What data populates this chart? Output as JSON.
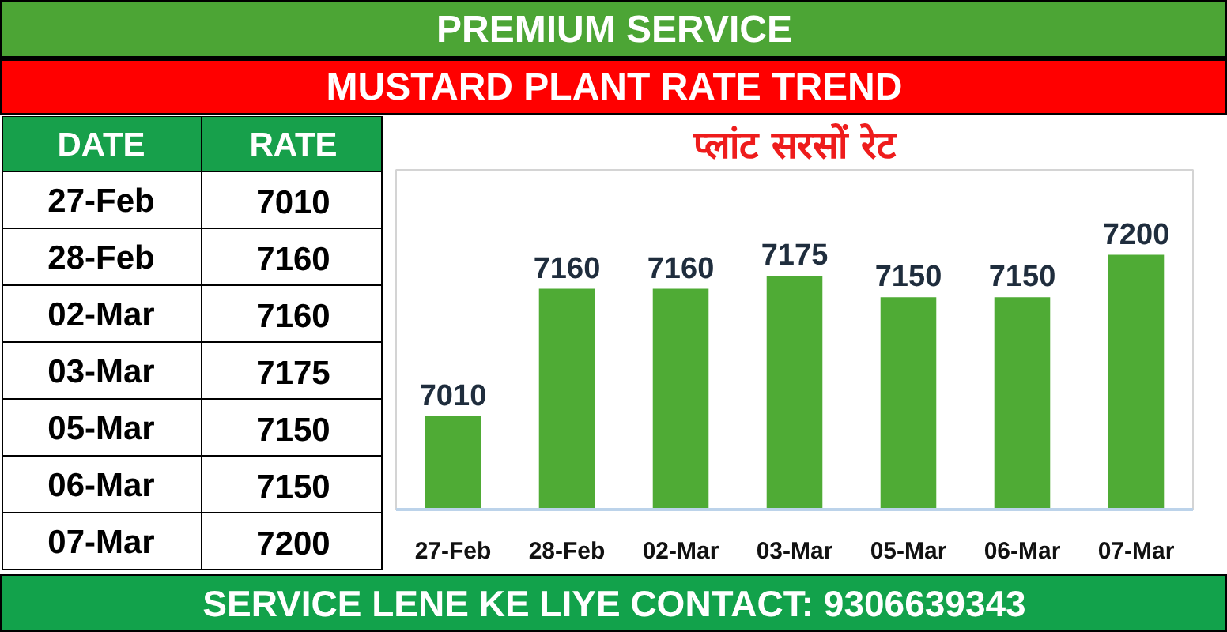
{
  "chart_data": {
    "type": "bar",
    "title": "MUSTARD PLANT RATE TREND",
    "subtitle": "प्लांट सरसों रेट",
    "annotations": [
      "PREMIUM SERVICE",
      "DATE",
      "RATE",
      "SERVICE LENE KE LIYE CONTACT: 9306639343"
    ],
    "categories": [
      "27-Feb",
      "28-Feb",
      "02-Mar",
      "03-Mar",
      "05-Mar",
      "06-Mar",
      "07-Mar"
    ],
    "values": [
      7010,
      7160,
      7160,
      7175,
      7150,
      7150,
      7200
    ],
    "value_labels": [
      "7010",
      "7160",
      "7160",
      "7175",
      "7150",
      "7150",
      "7200"
    ],
    "color": "#4fab35",
    "ylim": [
      6900,
      7300
    ]
  }
}
